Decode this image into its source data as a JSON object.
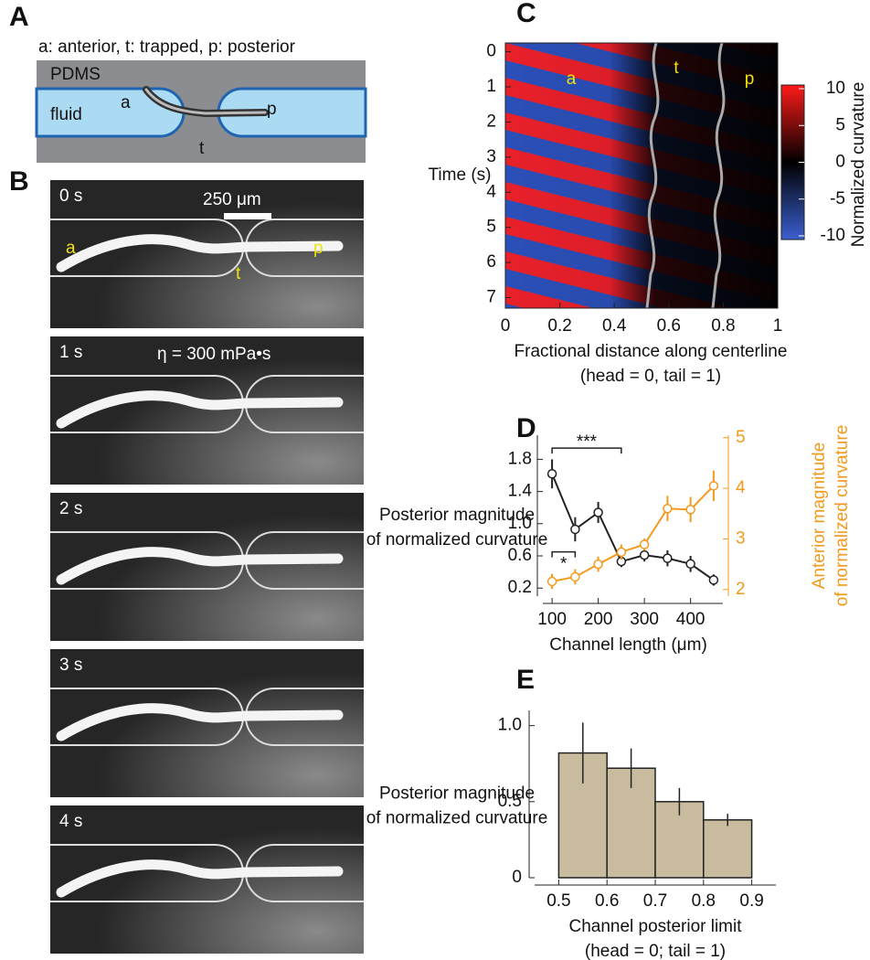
{
  "figure": {
    "panel_a": {
      "letter": "A",
      "caption": "a: anterior, t: trapped, p: posterior",
      "material": "PDMS",
      "medium": "fluid",
      "anterior": "a",
      "trapped": "t",
      "posterior": "p"
    },
    "panel_b": {
      "letter": "B",
      "frames": [
        "0 s",
        "1 s",
        "2 s",
        "3 s",
        "4 s"
      ],
      "scale_bar": "250 μm",
      "viscosity": "η = 300 mPa•s",
      "anterior": "a",
      "trapped": "t",
      "posterior": "p"
    }
  },
  "chart_data": [
    {
      "type": "heatmap",
      "panel": "C",
      "xlabel": [
        "Fractional distance along centerline",
        "(head = 0, tail = 1)"
      ],
      "ylabel": "Time (s)",
      "xlim": [
        0,
        1
      ],
      "xticks": [
        0,
        0.2,
        0.4,
        0.6,
        0.8,
        1
      ],
      "ylim": [
        7.3,
        -0.25
      ],
      "yticks": [
        0,
        1,
        2,
        3,
        4,
        5,
        6,
        7
      ],
      "colorbar_label": "Normalized curvature",
      "clim": [
        -10.5,
        10.5
      ],
      "cticks": [
        10,
        5,
        0,
        -5,
        -10
      ],
      "region_labels": [
        "a",
        "t",
        "p"
      ]
    },
    {
      "type": "line",
      "panel": "D",
      "xlabel": "Channel length (μm)",
      "ylabel": [
        "Posterior magnitude",
        "of normalized curvature"
      ],
      "y2label": [
        "Anterior  magnitude",
        "of normalized curvature"
      ],
      "x": [
        100,
        150,
        200,
        250,
        300,
        350,
        400,
        450
      ],
      "xlim": [
        80,
        470
      ],
      "xticks": [
        100,
        200,
        300,
        400
      ],
      "ylim": [
        0.1,
        2.1
      ],
      "yticks": [
        0.2,
        0.6,
        {
          "value": 1,
          "label": "1.0"
        },
        1.4,
        1.8
      ],
      "y2lim": [
        1.87,
        5.05
      ],
      "y2ticks": [
        2,
        3,
        4,
        5
      ],
      "series": [
        {
          "color": "#222222",
          "values": [
            1.62,
            0.93,
            1.14,
            0.53,
            0.61,
            0.57,
            0.5,
            0.3
          ],
          "errors": [
            0.18,
            0.15,
            0.13,
            0.07,
            0.08,
            0.1,
            0.1,
            0.07
          ]
        },
        {
          "color": "#f39a1e",
          "axis": "y2",
          "values": [
            2.16,
            2.25,
            2.5,
            2.74,
            2.89,
            3.6,
            3.58,
            4.05
          ],
          "errors": [
            0.15,
            0.15,
            0.15,
            0.15,
            0.12,
            0.25,
            0.25,
            0.3
          ]
        }
      ],
      "annotations": [
        {
          "text": "***",
          "x": [
            100,
            250
          ],
          "y": 1.94
        },
        {
          "text": "*",
          "x": [
            100,
            150
          ],
          "y": 0.65
        }
      ]
    },
    {
      "type": "histogram",
      "panel": "E",
      "xlabel": [
        "Channel posterior limit",
        "(head = 0; tail = 1)"
      ],
      "ylabel": [
        "Posterior magnitude",
        "of normalized curvature"
      ],
      "bins": [
        0.5,
        0.6,
        0.7,
        0.8,
        0.9
      ],
      "values": [
        0.82,
        0.72,
        0.5,
        0.38
      ],
      "errors": [
        0.2,
        0.13,
        0.09,
        0.04
      ],
      "color": "#c9bc9e",
      "xlim": [
        0.45,
        0.95
      ],
      "xticks": [
        0.5,
        0.6,
        0.7,
        0.8,
        0.9
      ],
      "ylim": [
        0,
        1.1
      ],
      "yticks": [
        0,
        0.5,
        {
          "value": 1,
          "label": "1.0"
        }
      ]
    }
  ]
}
